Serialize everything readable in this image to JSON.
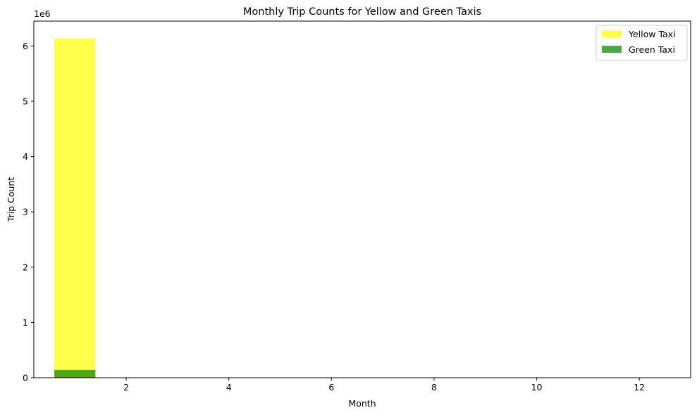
{
  "colors": {
    "yellow": "#ffff00",
    "green": "#008000",
    "axis": "#000000",
    "background": "#ffffff"
  },
  "chart_data": {
    "type": "bar",
    "title": "Monthly Trip Counts for Yellow and Green Taxis",
    "xlabel": "Month",
    "ylabel": "Trip Count",
    "y_offset_label": "1e6",
    "xlim": [
      0.2,
      13.0
    ],
    "ylim": [
      0,
      6.45
    ],
    "x_ticks": [
      2,
      4,
      6,
      8,
      10,
      12
    ],
    "y_ticks": [
      0,
      1,
      2,
      3,
      4,
      5,
      6
    ],
    "bar_width": 0.8,
    "overlay": true,
    "alpha": 0.7,
    "grid": false,
    "legend": "top-right",
    "series": [
      {
        "name": "Yellow Taxi",
        "color": "#ffff00",
        "x": [
          1
        ],
        "values": [
          6.14
        ]
      },
      {
        "name": "Green Taxi",
        "color": "#008000",
        "x": [
          1
        ],
        "values": [
          0.14
        ]
      }
    ]
  }
}
